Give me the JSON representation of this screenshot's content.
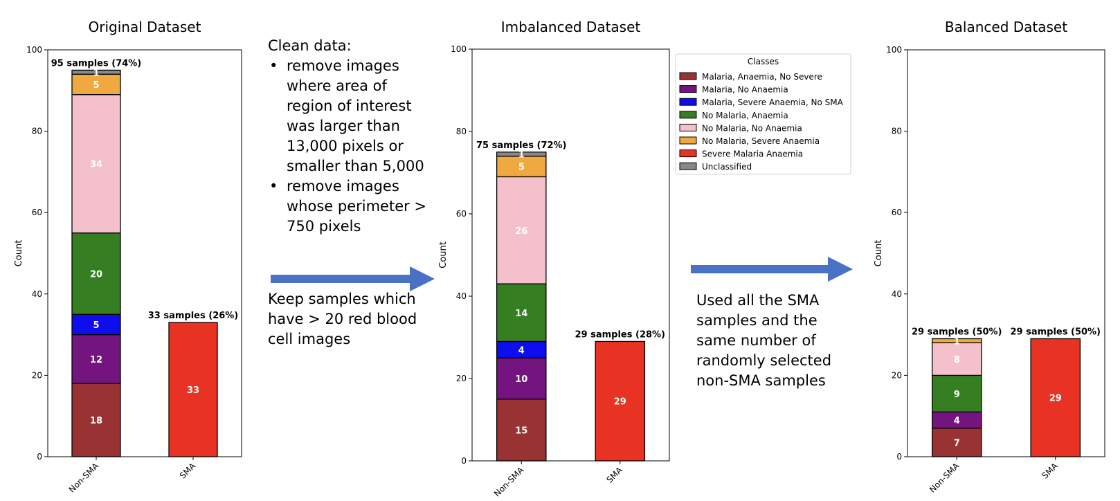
{
  "colors": {
    "Malaria, Anaemia, No Severe": "#993333",
    "Malaria, No Anaemia": "#74157f",
    "Malaria, Severe Anaemia, No SMA": "#0d0dee",
    "No Malaria, Anaemia": "#357e22",
    "No Malaria, No Anaemia": "#f4c0cb",
    "No Malaria, Severe Anaemia": "#f0a840",
    "Severe Malaria Anaemia": "#e83324",
    "Unclassified": "#888888",
    "arrow": "#4a72c4"
  },
  "notes": {
    "clean_title": "Clean data:",
    "clean_bullets": [
      "remove images where area of region of interest was larger than 13,000 pixels or smaller than 5,000",
      "remove images whose perimeter > 750 pixels"
    ],
    "keep_text": "Keep samples which have > 20 red blood cell images",
    "balance_text": "Used all the SMA samples and the same number of randomly selected non-SMA samples"
  },
  "chart_data": [
    {
      "type": "bar",
      "stacked": true,
      "title": "Original Dataset",
      "xlabel": "",
      "ylabel": "Count",
      "ylim": [
        0,
        100
      ],
      "yticks": [
        0,
        20,
        40,
        60,
        80,
        100
      ],
      "categories": [
        "Non-SMA",
        "SMA"
      ],
      "totals_labels": [
        "95 samples (74%)",
        "33 samples (26%)"
      ],
      "series": [
        {
          "name": "Malaria, Anaemia, No Severe",
          "values": [
            18,
            0
          ]
        },
        {
          "name": "Malaria, No Anaemia",
          "values": [
            12,
            0
          ]
        },
        {
          "name": "Malaria, Severe Anaemia, No SMA",
          "values": [
            5,
            0
          ]
        },
        {
          "name": "No Malaria, Anaemia",
          "values": [
            20,
            0
          ]
        },
        {
          "name": "No Malaria, No Anaemia",
          "values": [
            34,
            0
          ]
        },
        {
          "name": "No Malaria, Severe Anaemia",
          "values": [
            5,
            0
          ]
        },
        {
          "name": "Severe Malaria Anaemia",
          "values": [
            0,
            33
          ]
        },
        {
          "name": "Unclassified",
          "values": [
            1,
            0
          ]
        }
      ]
    },
    {
      "type": "bar",
      "stacked": true,
      "title": "Imbalanced Dataset",
      "xlabel": "",
      "ylabel": "Count",
      "ylim": [
        0,
        100
      ],
      "yticks": [
        0,
        20,
        40,
        60,
        80,
        100
      ],
      "categories": [
        "Non-SMA",
        "SMA"
      ],
      "totals_labels": [
        "75 samples (72%)",
        "29 samples (28%)"
      ],
      "legend": {
        "title": "Classes",
        "placement": "top-right"
      },
      "series": [
        {
          "name": "Malaria, Anaemia, No Severe",
          "values": [
            15,
            0
          ]
        },
        {
          "name": "Malaria, No Anaemia",
          "values": [
            10,
            0
          ]
        },
        {
          "name": "Malaria, Severe Anaemia, No SMA",
          "values": [
            4,
            0
          ]
        },
        {
          "name": "No Malaria, Anaemia",
          "values": [
            14,
            0
          ]
        },
        {
          "name": "No Malaria, No Anaemia",
          "values": [
            26,
            0
          ]
        },
        {
          "name": "No Malaria, Severe Anaemia",
          "values": [
            5,
            0
          ]
        },
        {
          "name": "Severe Malaria Anaemia",
          "values": [
            0,
            29
          ]
        },
        {
          "name": "Unclassified",
          "values": [
            1,
            0
          ]
        }
      ]
    },
    {
      "type": "bar",
      "stacked": true,
      "title": "Balanced Dataset",
      "xlabel": "",
      "ylabel": "Count",
      "ylim": [
        0,
        100
      ],
      "yticks": [
        0,
        20,
        40,
        60,
        80,
        100
      ],
      "categories": [
        "Non-SMA",
        "SMA"
      ],
      "totals_labels": [
        "29 samples (50%)",
        "29 samples (50%)"
      ],
      "series": [
        {
          "name": "Malaria, Anaemia, No Severe",
          "values": [
            7,
            0
          ]
        },
        {
          "name": "Malaria, No Anaemia",
          "values": [
            4,
            0
          ]
        },
        {
          "name": "Malaria, Severe Anaemia, No SMA",
          "values": [
            0,
            0
          ]
        },
        {
          "name": "No Malaria, Anaemia",
          "values": [
            9,
            0
          ]
        },
        {
          "name": "No Malaria, No Anaemia",
          "values": [
            8,
            0
          ]
        },
        {
          "name": "No Malaria, Severe Anaemia",
          "values": [
            1,
            0
          ]
        },
        {
          "name": "Severe Malaria Anaemia",
          "values": [
            0,
            29
          ]
        },
        {
          "name": "Unclassified",
          "values": [
            0,
            0
          ]
        }
      ]
    }
  ]
}
